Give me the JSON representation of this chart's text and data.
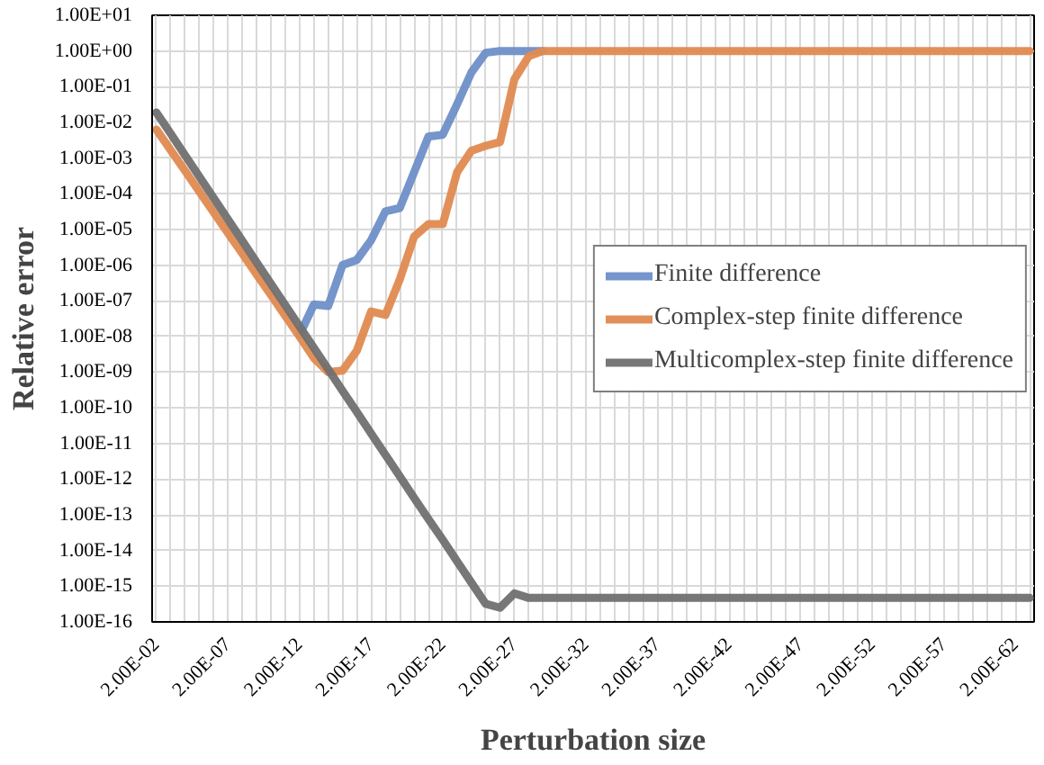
{
  "chart_data": {
    "type": "line",
    "xlabel": "Perturbation size",
    "ylabel": "Relative error",
    "categories": [
      "2.00E-02",
      null,
      null,
      null,
      null,
      "2.00E-07",
      null,
      null,
      null,
      null,
      "2.00E-12",
      null,
      null,
      null,
      null,
      "2.00E-17",
      null,
      null,
      null,
      null,
      "2.00E-22",
      null,
      null,
      null,
      null,
      "2.00E-27",
      null,
      null,
      null,
      null,
      "2.00E-32",
      null,
      null,
      null,
      null,
      "2.00E-37",
      null,
      null,
      null,
      null,
      "2.00E-42",
      null,
      null,
      null,
      null,
      "2.00E-47",
      null,
      null,
      null,
      null,
      "2.00E-52",
      null,
      null,
      null,
      null,
      "2.00E-57",
      null,
      null,
      null,
      null,
      "2.00E-62",
      null
    ],
    "log": "y",
    "ylim": [
      1e-16,
      10
    ],
    "yticks": [
      {
        "value": 10,
        "label": "1.00E+01"
      },
      {
        "value": 1,
        "label": "1.00E+00"
      },
      {
        "value": 0.1,
        "label": "1.00E-01"
      },
      {
        "value": 0.01,
        "label": "1.00E-02"
      },
      {
        "value": 0.001,
        "label": "1.00E-03"
      },
      {
        "value": 0.0001,
        "label": "1.00E-04"
      },
      {
        "value": 1e-05,
        "label": "1.00E-05"
      },
      {
        "value": 1e-06,
        "label": "1.00E-06"
      },
      {
        "value": 1e-07,
        "label": "1.00E-07"
      },
      {
        "value": 1e-08,
        "label": "1.00E-08"
      },
      {
        "value": 1e-09,
        "label": "1.00E-09"
      },
      {
        "value": 1e-10,
        "label": "1.00E-10"
      },
      {
        "value": 1e-11,
        "label": "1.00E-11"
      },
      {
        "value": 1e-12,
        "label": "1.00E-12"
      },
      {
        "value": 1e-13,
        "label": "1.00E-13"
      },
      {
        "value": 1e-14,
        "label": "1.00E-14"
      },
      {
        "value": 1e-15,
        "label": "1.00E-15"
      },
      {
        "value": 1e-16,
        "label": "1.00E-16"
      }
    ],
    "grid": true,
    "legend": "right",
    "line_style": "solid",
    "marker": "none",
    "series": [
      {
        "name": "Finite difference",
        "color": "#6e8fc8",
        "values": [
          null,
          null,
          null,
          null,
          null,
          null,
          null,
          null,
          null,
          null,
          1.1e-08,
          7.9e-08,
          7.1e-08,
          1e-06,
          1.4e-06,
          5e-06,
          3.2e-05,
          4e-05,
          0.0004,
          0.004,
          0.0045,
          0.032,
          0.25,
          0.89,
          1,
          1,
          1,
          1,
          null,
          null,
          null,
          null,
          null,
          null,
          null,
          null,
          null,
          null,
          null,
          null,
          null,
          null,
          null,
          null,
          null,
          null,
          null,
          null,
          null,
          null,
          null,
          null,
          null,
          null,
          null,
          null,
          null,
          null,
          null,
          null,
          null,
          null
        ]
      },
      {
        "name": "Complex-step finite difference",
        "color": "#e08a50",
        "values": [
          0.0063,
          0.00166,
          0.00044,
          0.000115,
          3e-05,
          7.9e-06,
          2.1e-06,
          5.5e-07,
          1.45e-07,
          3.8e-08,
          1e-08,
          2.5e-09,
          1e-09,
          1.1e-09,
          4e-09,
          5e-08,
          4e-08,
          4e-07,
          6.3e-06,
          1.4e-05,
          1.4e-05,
          0.0004,
          0.0016,
          0.0022,
          0.0028,
          0.16,
          0.71,
          1,
          1,
          1,
          1,
          1,
          1,
          1,
          1,
          1,
          1,
          1,
          1,
          1,
          1,
          1,
          1,
          1,
          1,
          1,
          1,
          1,
          1,
          1,
          1,
          1,
          1,
          1,
          1,
          1,
          1,
          1,
          1,
          1,
          1,
          1
        ]
      },
      {
        "name": "Multicomplex-step finite difference",
        "color": "#707070",
        "values": [
          0.019,
          0.0048,
          0.0012,
          0.0003,
          7.6e-05,
          1.9e-05,
          4.8e-06,
          1.2e-06,
          3e-07,
          7.6e-08,
          1.9e-08,
          4.8e-09,
          1.2e-09,
          3e-10,
          7.6e-11,
          1.9e-11,
          4.8e-12,
          1.2e-12,
          3e-13,
          7.6e-14,
          2e-14,
          5e-15,
          1.26e-15,
          3.2e-16,
          2.5e-16,
          6.3e-16,
          4.7e-16,
          4.7e-16,
          4.7e-16,
          4.7e-16,
          4.7e-16,
          4.7e-16,
          4.7e-16,
          4.7e-16,
          4.7e-16,
          4.7e-16,
          4.7e-16,
          4.7e-16,
          4.7e-16,
          4.7e-16,
          4.7e-16,
          4.7e-16,
          4.7e-16,
          4.7e-16,
          4.7e-16,
          4.7e-16,
          4.7e-16,
          4.7e-16,
          4.7e-16,
          4.7e-16,
          4.7e-16,
          4.7e-16,
          4.7e-16,
          4.7e-16,
          4.7e-16,
          4.7e-16,
          4.7e-16,
          4.7e-16,
          4.7e-16,
          4.7e-16,
          4.7e-16,
          4.7e-16
        ]
      }
    ]
  }
}
